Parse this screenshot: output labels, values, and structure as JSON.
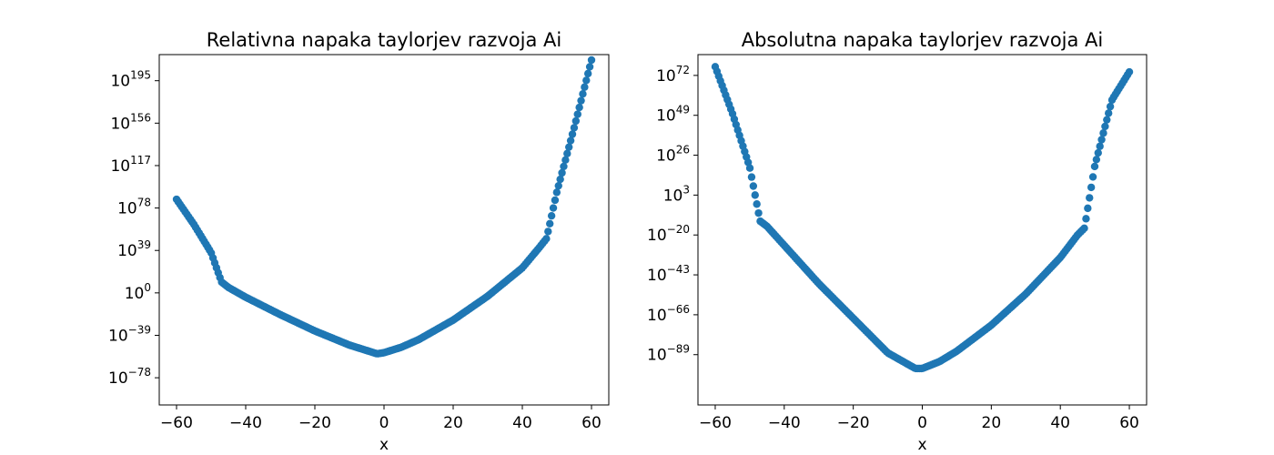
{
  "chart_data": [
    {
      "type": "scatter",
      "title": "Relativna napaka taylorjev razvoja Ai",
      "xlabel": "x",
      "ylabel": "",
      "yscale": "log",
      "xlim": [
        -65,
        65
      ],
      "ylim_log10": [
        -103,
        219
      ],
      "grid": false,
      "marker_color": "#1f77b4",
      "x_ticks": [
        -60,
        -40,
        -20,
        0,
        20,
        40,
        60
      ],
      "x_tick_labels": [
        "−60",
        "−40",
        "−20",
        "0",
        "20",
        "40",
        "60"
      ],
      "y_ticks_log10": [
        -78,
        -39,
        0,
        39,
        78,
        117,
        156,
        195
      ],
      "y_tick_labels": [
        {
          "base": "10",
          "exp": "−78"
        },
        {
          "base": "10",
          "exp": "−39"
        },
        {
          "base": "10",
          "exp": "0"
        },
        {
          "base": "10",
          "exp": "39"
        },
        {
          "base": "10",
          "exp": "78"
        },
        {
          "base": "10",
          "exp": "117"
        },
        {
          "base": "10",
          "exp": "156"
        },
        {
          "base": "10",
          "exp": "195"
        }
      ],
      "curve_log10": {
        "x": [
          -60,
          -55,
          -50,
          -47,
          -45,
          -40,
          -30,
          -20,
          -10,
          -2,
          0,
          5,
          10,
          20,
          30,
          40,
          45,
          47,
          50,
          55,
          60
        ],
        "y": [
          86,
          63,
          37,
          10,
          5,
          -4,
          -20,
          -35,
          -48,
          -56,
          -55,
          -50,
          -43,
          -25,
          -3,
          23,
          42,
          50,
          93,
          152,
          214
        ]
      },
      "n_points": 240
    },
    {
      "type": "scatter",
      "title": "Absolutna napaka taylorjev razvoja Ai",
      "xlabel": "x",
      "ylabel": "",
      "yscale": "log",
      "xlim": [
        -65,
        65
      ],
      "ylim_log10": [
        -118,
        84
      ],
      "grid": false,
      "marker_color": "#1f77b4",
      "x_ticks": [
        -60,
        -40,
        -20,
        0,
        20,
        40,
        60
      ],
      "x_tick_labels": [
        "−60",
        "−40",
        "−20",
        "0",
        "20",
        "40",
        "60"
      ],
      "y_ticks_log10": [
        -89,
        -66,
        -43,
        -20,
        3,
        26,
        49,
        72
      ],
      "y_tick_labels": [
        {
          "base": "10",
          "exp": "−89"
        },
        {
          "base": "10",
          "exp": "−66"
        },
        {
          "base": "10",
          "exp": "−43"
        },
        {
          "base": "10",
          "exp": "−20"
        },
        {
          "base": "10",
          "exp": "3"
        },
        {
          "base": "10",
          "exp": "26"
        },
        {
          "base": "10",
          "exp": "49"
        },
        {
          "base": "10",
          "exp": "72"
        }
      ],
      "curve_log10": {
        "x": [
          -60,
          -55,
          -50,
          -47,
          -45,
          -40,
          -30,
          -20,
          -10,
          -2,
          0,
          5,
          10,
          20,
          30,
          40,
          45,
          47,
          50,
          55,
          60
        ],
        "y": [
          77,
          50,
          19,
          -12,
          -15,
          -26,
          -48,
          -68,
          -88,
          -97,
          -97,
          -93,
          -87,
          -72,
          -54,
          -33,
          -20,
          -16,
          20,
          58,
          74
        ]
      },
      "n_points": 240
    }
  ]
}
